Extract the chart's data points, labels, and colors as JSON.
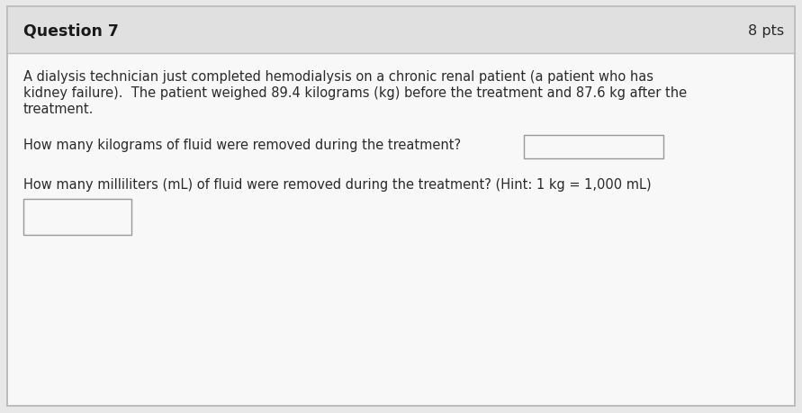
{
  "title": "Question 7",
  "pts": "8 pts",
  "body_lines": [
    "A dialysis technician just completed hemodialysis on a chronic renal patient (a patient who has",
    "kidney failure).  The patient weighed 89.4 kilograms (kg) before the treatment and 87.6 kg after the",
    "treatment."
  ],
  "question1_text": "How many kilograms of fluid were removed during the treatment?",
  "question2_text": "How many milliliters (mL) of fluid were removed during the treatment? (Hint: 1 kg = 1,000 mL)",
  "outer_bg_color": "#e8e8e8",
  "title_bg_color": "#e0e0e0",
  "card_color": "#f8f8f8",
  "border_color": "#bbbbbb",
  "title_color": "#1a1a1a",
  "body_color": "#2a2a2a",
  "pts_color": "#2a2a2a",
  "box_border_color": "#999999",
  "title_fontsize": 12.5,
  "pts_fontsize": 11.5,
  "body_fontsize": 10.5,
  "question_fontsize": 10.5
}
